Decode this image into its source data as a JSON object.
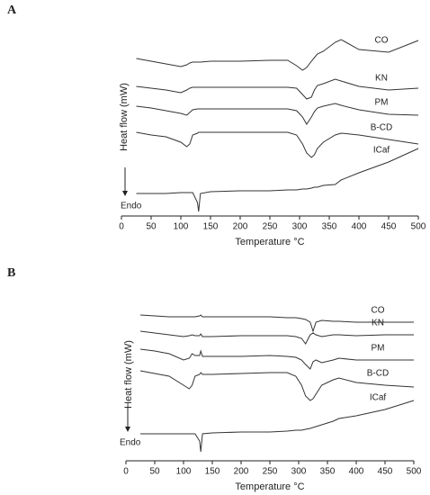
{
  "chart_data": [
    {
      "type": "line",
      "label": "A",
      "xlabel": "Temperature °C",
      "ylabel": "Heat flow (mW)",
      "annotation": "Endo",
      "xlim": [
        0,
        500
      ],
      "xticks": [
        0,
        50,
        100,
        150,
        200,
        250,
        300,
        350,
        400,
        450,
        500
      ],
      "ylim": [
        0,
        200
      ],
      "x": [
        25,
        50,
        75,
        100,
        110,
        115,
        120,
        128,
        130,
        133,
        150,
        200,
        250,
        280,
        295,
        305,
        312,
        320,
        325,
        330,
        340,
        360,
        370,
        400,
        450,
        500
      ],
      "series": [
        {
          "name": "CO",
          "color": "#333333",
          "values": [
            175,
            172,
            169,
            166,
            168,
            170,
            171,
            171,
            171,
            171,
            172,
            172,
            173,
            173,
            167,
            162,
            165,
            172,
            176,
            180,
            183,
            193,
            196,
            185,
            182,
            195
          ]
        },
        {
          "name": "KN",
          "color": "#333333",
          "values": [
            144,
            142,
            140,
            137,
            140,
            142,
            143,
            143,
            143,
            143,
            143,
            143,
            143,
            143,
            142,
            135,
            130,
            132,
            140,
            145,
            147,
            152,
            150,
            144,
            140,
            142
          ]
        },
        {
          "name": "PM",
          "color": "#333333",
          "values": [
            122,
            120,
            117,
            114,
            112,
            115,
            118,
            119,
            119,
            119,
            119,
            119,
            119,
            119,
            117,
            110,
            102,
            110,
            116,
            120,
            122,
            125,
            123,
            118,
            113,
            112
          ]
        },
        {
          "name": "B-CD",
          "color": "#333333",
          "values": [
            93,
            90,
            88,
            82,
            77,
            80,
            90,
            92,
            93,
            93,
            93,
            93,
            93,
            93,
            90,
            80,
            70,
            65,
            68,
            75,
            82,
            90,
            92,
            90,
            85,
            80
          ]
        },
        {
          "name": "ICaf",
          "color": "#333333",
          "values": [
            25,
            25,
            25,
            26,
            26,
            26,
            26,
            15,
            5,
            25,
            27,
            28,
            28,
            29,
            29,
            30,
            30,
            31,
            32,
            32,
            34,
            35,
            40,
            48,
            60,
            75
          ]
        }
      ]
    },
    {
      "type": "line",
      "label": "B",
      "xlabel": "Temperature °C",
      "ylabel": "Heat flow (mW)",
      "annotation": "Endo",
      "xlim": [
        0,
        500
      ],
      "xticks": [
        0,
        50,
        100,
        150,
        200,
        250,
        300,
        350,
        400,
        450,
        500
      ],
      "ylim": [
        0,
        172
      ],
      "x": [
        25,
        50,
        75,
        100,
        110,
        115,
        120,
        128,
        130,
        133,
        150,
        200,
        250,
        280,
        295,
        305,
        312,
        320,
        325,
        330,
        340,
        360,
        370,
        400,
        450,
        500
      ],
      "series": [
        {
          "name": "CO",
          "color": "#333333",
          "values": [
            162,
            161,
            160,
            160,
            160,
            160,
            160,
            161,
            162,
            160,
            160,
            160,
            160,
            159,
            159,
            158,
            157,
            154,
            144,
            154,
            156,
            155,
            155,
            154,
            154,
            154
          ]
        },
        {
          "name": "KN",
          "color": "#333333",
          "values": [
            144,
            142,
            140,
            138,
            139,
            140,
            139,
            139,
            141,
            138,
            138,
            139,
            139,
            139,
            138,
            136,
            130,
            140,
            142,
            140,
            138,
            140,
            140,
            139,
            140,
            140
          ]
        },
        {
          "name": "PM",
          "color": "#333333",
          "values": [
            124,
            122,
            119,
            112,
            114,
            119,
            117,
            117,
            122,
            116,
            116,
            116,
            117,
            116,
            115,
            112,
            107,
            102,
            110,
            112,
            109,
            112,
            114,
            112,
            112,
            112
          ]
        },
        {
          "name": "B-CD",
          "color": "#333333",
          "values": [
            100,
            97,
            94,
            84,
            80,
            84,
            94,
            96,
            98,
            96,
            96,
            97,
            98,
            98,
            94,
            84,
            72,
            67,
            69,
            74,
            84,
            90,
            92,
            87,
            84,
            82
          ]
        },
        {
          "name": "ICaf",
          "color": "#333333",
          "values": [
            30,
            30,
            30,
            30,
            30,
            30,
            30,
            22,
            10,
            30,
            31,
            32,
            32,
            33,
            34,
            34,
            35,
            36,
            37,
            38,
            40,
            44,
            47,
            50,
            57,
            67
          ]
        }
      ]
    }
  ]
}
